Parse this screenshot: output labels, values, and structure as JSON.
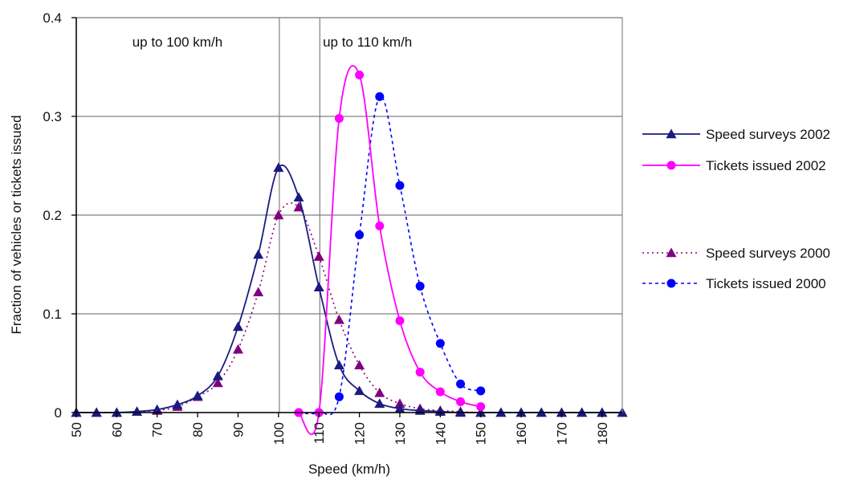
{
  "chart_data": {
    "type": "line",
    "xlabel": "Speed (km/h)",
    "ylabel": "Fraction of vehicles or tickets issued",
    "xlim": [
      50,
      185
    ],
    "ylim": [
      0,
      0.4
    ],
    "x_ticks": [
      50,
      60,
      70,
      80,
      90,
      100,
      110,
      120,
      130,
      140,
      150,
      160,
      170,
      180
    ],
    "y_ticks": [
      0,
      0.1,
      0.2,
      0.3,
      0.4
    ],
    "x_tick_labels": [
      "50",
      "60",
      "70",
      "80",
      "90",
      "100",
      "110",
      "120",
      "130",
      "140",
      "150",
      "160",
      "170",
      "180"
    ],
    "y_tick_labels": [
      "0",
      "0.1",
      "0.2",
      "0.3",
      "0.4"
    ],
    "grid": "horizontal",
    "legend_position": "right",
    "annotations": [
      {
        "text": "up to 100 km/h",
        "x": 75
      },
      {
        "text": "up to 110 km/h",
        "x": 122
      }
    ],
    "series": [
      {
        "name": "Speed surveys 2002",
        "color": "#1a1a80",
        "line": "solid",
        "marker": "triangle",
        "x": [
          50,
          55,
          60,
          65,
          70,
          75,
          80,
          85,
          90,
          95,
          100,
          105,
          110,
          115,
          120,
          125,
          130,
          135,
          140,
          145,
          150,
          155,
          160,
          165,
          170,
          175,
          180,
          185
        ],
        "y": [
          0,
          0,
          0,
          0.001,
          0.003,
          0.008,
          0.017,
          0.037,
          0.087,
          0.16,
          0.248,
          0.218,
          0.127,
          0.048,
          0.022,
          0.009,
          0.004,
          0.002,
          0.001,
          0,
          0,
          0,
          0,
          0,
          0,
          0,
          0,
          0
        ]
      },
      {
        "name": "Tickets issued 2002",
        "color": "#ff00ff",
        "line": "solid",
        "marker": "circle",
        "x": [
          105,
          110,
          115,
          120,
          125,
          130,
          135,
          140,
          145,
          150
        ],
        "y": [
          0,
          0,
          0.298,
          0.342,
          0.189,
          0.093,
          0.041,
          0.021,
          0.011,
          0.006
        ]
      },
      {
        "name": "Speed surveys 2000",
        "color": "#800080",
        "line": "dotted",
        "marker": "triangle",
        "x": [
          50,
          55,
          60,
          65,
          70,
          75,
          80,
          85,
          90,
          95,
          100,
          105,
          110,
          115,
          120,
          125,
          130,
          135,
          140,
          145,
          150,
          155,
          160,
          165,
          170,
          175,
          180,
          185
        ],
        "y": [
          0,
          0,
          0,
          0.001,
          0.002,
          0.006,
          0.016,
          0.03,
          0.064,
          0.122,
          0.2,
          0.208,
          0.158,
          0.094,
          0.048,
          0.02,
          0.009,
          0.004,
          0.002,
          0.001,
          0,
          0,
          0,
          0,
          0,
          0,
          0,
          0
        ]
      },
      {
        "name": "Tickets issued 2000",
        "color": "#0000ff",
        "line": "dashed",
        "marker": "circle",
        "x": [
          105,
          110,
          115,
          120,
          125,
          130,
          135,
          140,
          145,
          150
        ],
        "y": [
          0,
          0,
          0.016,
          0.18,
          0.32,
          0.23,
          0.128,
          0.07,
          0.029,
          0.022
        ]
      }
    ]
  }
}
